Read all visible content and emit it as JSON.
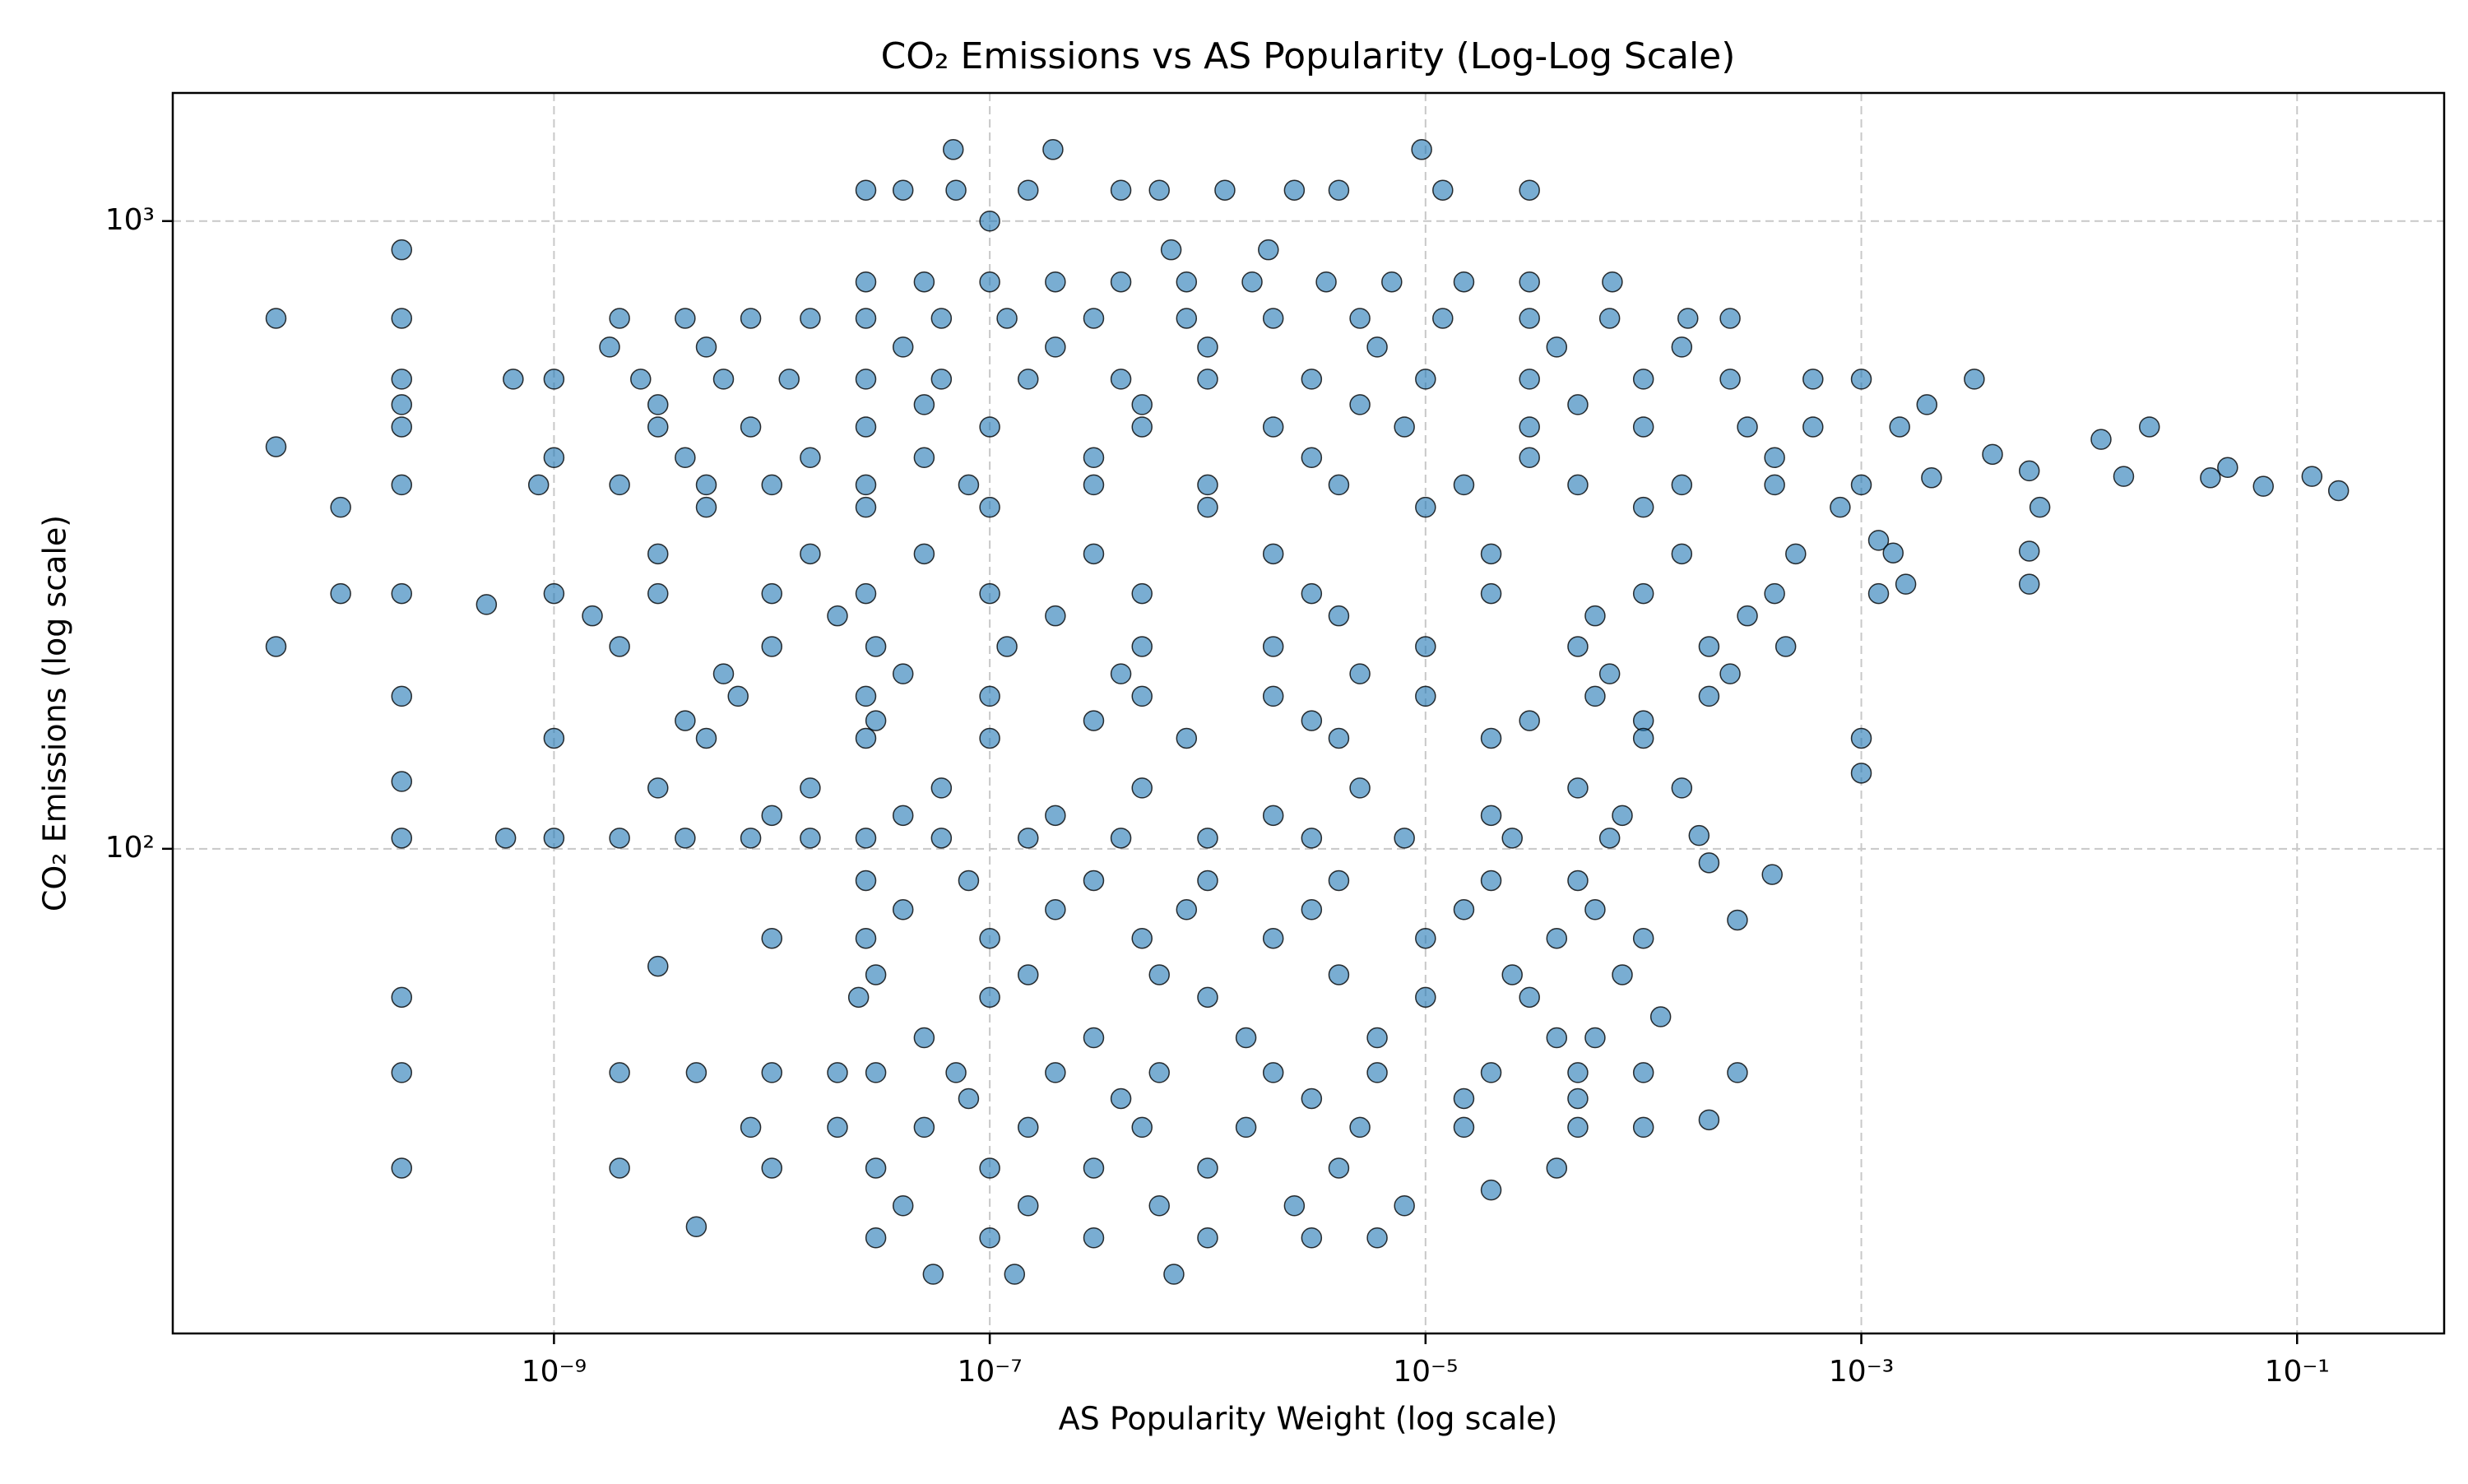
{
  "chart_data": {
    "type": "scatter",
    "title": "CO₂ Emissions vs AS Popularity (Log-Log Scale)",
    "x_label": "AS Popularity Weight (log scale)",
    "y_label": "CO₂ Emissions (log scale)",
    "xscale": "log",
    "yscale": "log",
    "grid": true,
    "color": "#1f77b4",
    "xlim": [
      1.78e-11,
      0.473
    ],
    "ylim": [
      16.9,
      1600
    ],
    "xticks": [
      {
        "value": 1e-09,
        "label": "10⁻⁹"
      },
      {
        "value": 1e-07,
        "label": "10⁻⁷"
      },
      {
        "value": 1e-05,
        "label": "10⁻⁵"
      },
      {
        "value": 0.001,
        "label": "10⁻³"
      },
      {
        "value": 0.1,
        "label": "10⁻¹"
      }
    ],
    "yticks": [
      {
        "value": 100,
        "label": "10²"
      },
      {
        "value": 1000,
        "label": "10³"
      }
    ],
    "x": [
      2.7e-08,
      4e-08,
      7e-08,
      1.5e-07,
      4e-07,
      6e-07,
      1.2e-06,
      2.5e-06,
      4e-06,
      1.2e-05,
      3e-05,
      6.8e-08,
      1.95e-07,
      9.6e-06,
      1e-07,
      2e-10,
      6.8e-07,
      1.9e-06,
      2.7e-08,
      5e-08,
      1e-07,
      2e-07,
      4e-07,
      8e-07,
      1.6e-06,
      3.5e-06,
      7e-06,
      1.5e-05,
      3e-05,
      7.2e-05,
      5.3e-11,
      2e-10,
      2e-09,
      4e-09,
      8e-09,
      1.5e-08,
      2.7e-08,
      6e-08,
      1.2e-07,
      3e-07,
      8e-07,
      2e-06,
      5e-06,
      1.2e-05,
      3e-05,
      7e-05,
      0.00016,
      0.00025,
      1.8e-09,
      5e-09,
      4e-08,
      2e-07,
      1e-06,
      6e-06,
      4e-05,
      0.00015,
      2e-10,
      6.5e-10,
      1e-09,
      2.5e-09,
      6e-09,
      1.2e-08,
      2.7e-08,
      6e-08,
      1.5e-07,
      4e-07,
      1e-06,
      3e-06,
      1e-05,
      3e-05,
      0.0001,
      0.00025,
      0.0006,
      0.001,
      0.0033,
      2e-10,
      3e-09,
      5e-08,
      5e-07,
      5e-06,
      5e-05,
      0.002,
      2e-10,
      3e-09,
      8e-09,
      2.7e-08,
      1e-07,
      5e-07,
      2e-06,
      8e-06,
      3e-05,
      0.0001,
      0.0003,
      0.0006,
      0.0015,
      0.021,
      0.0126,
      0.004,
      5.3e-11,
      1e-09,
      4e-09,
      1.5e-08,
      5e-08,
      3e-07,
      3e-06,
      3e-05,
      0.0004,
      2e-10,
      8.5e-10,
      2e-09,
      5e-09,
      1e-08,
      2.7e-08,
      8e-08,
      3e-07,
      1e-06,
      4e-06,
      1.5e-05,
      5e-05,
      0.00015,
      0.0004,
      0.001,
      0.0021,
      0.0059,
      0.016,
      0.04,
      0.07,
      0.117,
      0.155,
      0.048,
      0.0066,
      0.0016,
      0.0059,
      0.0059,
      0.0012,
      0.0014,
      1.05e-10,
      5e-09,
      2.7e-08,
      1e-07,
      1e-06,
      1e-05,
      0.0001,
      0.0008,
      3e-09,
      1.5e-08,
      5e-08,
      3e-07,
      2e-06,
      2e-05,
      0.00015,
      0.0005,
      1.05e-10,
      2e-10,
      4.9e-10,
      1e-09,
      3e-09,
      1e-08,
      2.7e-08,
      1e-07,
      5e-07,
      3e-06,
      2e-05,
      0.0001,
      0.0004,
      0.0012,
      1.5e-09,
      2e-08,
      2e-07,
      4e-06,
      6e-05,
      0.0003,
      5.3e-11,
      2e-09,
      1e-08,
      3e-08,
      1.2e-07,
      5e-07,
      2e-06,
      1e-05,
      5e-05,
      0.0002,
      0.00045,
      6e-09,
      4e-08,
      4e-07,
      5e-06,
      7e-05,
      0.00025,
      2e-10,
      7e-09,
      2.7e-08,
      1e-07,
      5e-07,
      2e-06,
      1e-05,
      6e-05,
      0.0002,
      4e-09,
      3e-08,
      3e-07,
      3e-06,
      3e-05,
      0.0001,
      1e-09,
      5e-09,
      2.7e-08,
      1e-07,
      8e-07,
      4e-06,
      2e-05,
      0.0001,
      0.001,
      0.001,
      2e-10,
      3e-09,
      1.5e-08,
      6e-08,
      5e-07,
      5e-06,
      5e-05,
      0.00015,
      1e-08,
      4e-08,
      2e-07,
      2e-06,
      2e-05,
      8e-05,
      2e-10,
      6e-10,
      1e-09,
      2e-09,
      4e-09,
      8e-09,
      1.5e-08,
      2.7e-08,
      6e-08,
      1.5e-07,
      4e-07,
      1e-06,
      3e-06,
      8e-06,
      2.5e-05,
      7e-05,
      0.00018,
      0.0002,
      0.00039,
      0.00027,
      3e-09,
      2.7e-08,
      8e-08,
      3e-07,
      1e-06,
      4e-06,
      2e-05,
      5e-05,
      4e-08,
      2e-07,
      8e-07,
      3e-06,
      1.5e-05,
      6e-05,
      1e-08,
      2.7e-08,
      1e-07,
      5e-07,
      2e-06,
      1e-05,
      4e-05,
      0.0001,
      3e-08,
      1.5e-07,
      6e-07,
      4e-06,
      2.5e-05,
      8e-05,
      2e-10,
      2.5e-08,
      1e-07,
      1e-06,
      1e-05,
      3e-05,
      0.00012,
      5e-08,
      3e-07,
      1.5e-06,
      6e-06,
      4e-05,
      6e-05,
      2e-10,
      2e-09,
      4.5e-09,
      1e-08,
      2e-08,
      3e-08,
      7e-08,
      2e-07,
      6e-07,
      2e-06,
      6e-06,
      2e-05,
      5e-05,
      0.0001,
      0.00027,
      8e-08,
      4e-07,
      3e-06,
      1.5e-05,
      5e-05,
      8e-09,
      2e-08,
      5e-08,
      1.5e-07,
      5e-07,
      1.5e-06,
      5e-06,
      1.5e-05,
      5e-05,
      0.0001,
      0.0002,
      2e-10,
      2e-09,
      1e-08,
      3e-08,
      1e-07,
      3e-07,
      1e-06,
      4e-06,
      2e-05,
      4e-05,
      4e-08,
      1.5e-07,
      6e-07,
      2.5e-06,
      8e-06,
      4.5e-09,
      3e-08,
      1e-07,
      3e-07,
      1e-06,
      3e-06,
      6e-06,
      5.5e-08,
      1.3e-07,
      7e-07
    ],
    "y": [
      1120,
      1120,
      1120,
      1120,
      1120,
      1120,
      1120,
      1120,
      1120,
      1120,
      1120,
      1300,
      1300,
      1300,
      1000,
      900,
      900,
      900,
      800,
      800,
      800,
      800,
      800,
      800,
      800,
      800,
      800,
      800,
      800,
      800,
      700,
      700,
      700,
      700,
      700,
      700,
      700,
      700,
      700,
      700,
      700,
      700,
      700,
      700,
      700,
      700,
      700,
      700,
      630,
      630,
      630,
      630,
      630,
      630,
      630,
      630,
      560,
      560,
      560,
      560,
      560,
      560,
      560,
      560,
      560,
      560,
      560,
      560,
      560,
      560,
      560,
      560,
      560,
      560,
      560,
      510,
      510,
      510,
      510,
      510,
      510,
      510,
      470,
      470,
      470,
      470,
      470,
      470,
      470,
      470,
      470,
      470,
      470,
      470,
      470,
      470,
      449,
      425,
      437,
      420,
      420,
      420,
      420,
      420,
      420,
      420,
      420,
      380,
      380,
      380,
      380,
      380,
      380,
      380,
      380,
      380,
      380,
      380,
      380,
      380,
      380,
      380,
      390,
      400,
      392,
      390,
      378,
      392,
      372,
      405,
      350,
      264,
      298,
      264,
      310,
      296,
      350,
      350,
      350,
      350,
      350,
      350,
      350,
      350,
      295,
      295,
      295,
      295,
      295,
      295,
      295,
      295,
      255,
      255,
      245,
      255,
      255,
      255,
      255,
      255,
      255,
      255,
      255,
      255,
      255,
      255,
      235,
      235,
      235,
      235,
      235,
      235,
      210,
      210,
      210,
      210,
      210,
      210,
      210,
      210,
      210,
      210,
      210,
      190,
      190,
      190,
      190,
      190,
      190,
      175,
      175,
      175,
      175,
      175,
      175,
      175,
      175,
      175,
      160,
      160,
      160,
      160,
      160,
      160,
      150,
      150,
      150,
      150,
      150,
      150,
      150,
      150,
      150,
      132,
      128,
      125,
      125,
      125,
      125,
      125,
      125,
      125,
      113,
      113,
      113,
      113,
      113,
      113,
      104,
      104,
      104,
      104,
      104,
      104,
      104,
      104,
      104,
      104,
      104,
      104,
      104,
      104,
      104,
      104,
      105,
      95,
      91,
      77,
      65,
      89,
      89,
      89,
      89,
      89,
      89,
      89,
      80,
      80,
      80,
      80,
      80,
      80,
      72,
      72,
      72,
      72,
      72,
      72,
      72,
      72,
      63,
      63,
      63,
      63,
      63,
      63,
      58,
      58,
      58,
      58,
      58,
      58,
      54,
      50,
      50,
      50,
      50,
      50,
      50,
      44,
      44,
      44,
      44,
      44,
      44,
      44,
      44,
      44,
      44,
      44,
      44,
      44,
      44,
      44,
      40,
      40,
      40,
      40,
      40,
      36,
      36,
      36,
      36,
      36,
      36,
      36,
      36,
      36,
      36,
      37,
      31,
      31,
      31,
      31,
      31,
      31,
      31,
      31,
      28.6,
      31,
      27,
      27,
      27,
      27,
      27,
      25,
      24,
      24,
      24,
      24,
      24,
      24,
      21,
      21,
      21
    ]
  }
}
